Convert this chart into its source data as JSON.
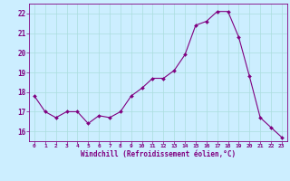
{
  "x": [
    0,
    1,
    2,
    3,
    4,
    5,
    6,
    7,
    8,
    9,
    10,
    11,
    12,
    13,
    14,
    15,
    16,
    17,
    18,
    19,
    20,
    21,
    22,
    23
  ],
  "y": [
    17.8,
    17.0,
    16.7,
    17.0,
    17.0,
    16.4,
    16.8,
    16.7,
    17.0,
    17.8,
    18.2,
    18.7,
    18.7,
    19.1,
    19.9,
    21.4,
    21.6,
    22.1,
    22.1,
    20.8,
    18.8,
    16.7,
    16.2,
    15.7
  ],
  "line_color": "#800080",
  "marker": "D",
  "marker_size": 2.0,
  "bg_color": "#cceeff",
  "grid_color": "#aadddd",
  "xlabel": "Windchill (Refroidissement éolien,°C)",
  "ylabel": "",
  "ylim": [
    15.5,
    22.5
  ],
  "yticks": [
    16,
    17,
    18,
    19,
    20,
    21,
    22
  ],
  "xticks": [
    0,
    1,
    2,
    3,
    4,
    5,
    6,
    7,
    8,
    9,
    10,
    11,
    12,
    13,
    14,
    15,
    16,
    17,
    18,
    19,
    20,
    21,
    22,
    23
  ],
  "tick_color": "#800080",
  "label_color": "#800080",
  "axis_color": "#800080",
  "title": ""
}
